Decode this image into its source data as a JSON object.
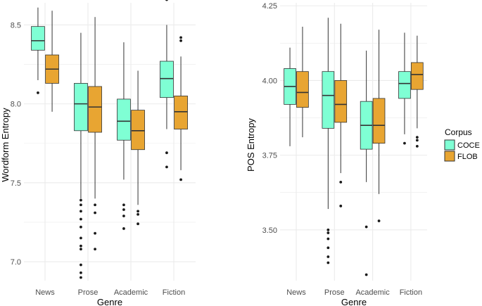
{
  "chart_data": [
    {
      "type": "boxplot",
      "xlabel": "Genre",
      "ylabel": "Wordform Entropy",
      "ylim": [
        6.88,
        8.64
      ],
      "yticks": [
        7.0,
        7.5,
        8.0,
        8.5
      ],
      "ytick_labels": [
        "7.0",
        "7.5",
        "8.0",
        "8.5"
      ],
      "grid": true,
      "categories": [
        "News",
        "Prose",
        "Academic",
        "Fiction"
      ],
      "series": [
        {
          "name": "COCE",
          "boxes": [
            {
              "whisker_low": 8.15,
              "q1": 8.34,
              "median": 8.4,
              "q3": 8.49,
              "whisker_high": 8.61,
              "outliers": [
                8.07
              ]
            },
            {
              "whisker_low": 7.4,
              "q1": 7.83,
              "median": 8.0,
              "q3": 8.13,
              "whisker_high": 8.45,
              "outliers": [
                7.39,
                7.36,
                7.32,
                7.27,
                7.22,
                7.15,
                7.1,
                7.08,
                6.98,
                6.93,
                6.9
              ]
            },
            {
              "whisker_low": 7.52,
              "q1": 7.77,
              "median": 7.89,
              "q3": 8.03,
              "whisker_high": 8.39,
              "outliers": [
                7.36,
                7.33,
                7.29,
                7.21
              ]
            },
            {
              "whisker_low": 7.84,
              "q1": 8.04,
              "median": 8.16,
              "q3": 8.27,
              "whisker_high": 8.5,
              "outliers": [
                8.66,
                7.69,
                7.6
              ]
            }
          ]
        },
        {
          "name": "FLOB",
          "boxes": [
            {
              "whisker_low": 7.95,
              "q1": 8.13,
              "median": 8.22,
              "q3": 8.31,
              "whisker_high": 8.59,
              "outliers": []
            },
            {
              "whisker_low": 7.4,
              "q1": 7.82,
              "median": 7.98,
              "q3": 8.11,
              "whisker_high": 8.55,
              "outliers": [
                7.36,
                7.31,
                7.18,
                7.08
              ]
            },
            {
              "whisker_low": 7.36,
              "q1": 7.71,
              "median": 7.83,
              "q3": 7.96,
              "whisker_high": 8.21,
              "outliers": [
                7.32,
                7.3,
                7.24
              ]
            },
            {
              "whisker_low": 7.58,
              "q1": 7.84,
              "median": 7.95,
              "q3": 8.05,
              "whisker_high": 8.3,
              "outliers": [
                8.42,
                8.4,
                7.52
              ]
            }
          ]
        }
      ]
    },
    {
      "type": "boxplot",
      "xlabel": "Genre",
      "ylabel": "POS Entropy",
      "ylim": [
        3.33,
        4.26
      ],
      "yticks": [
        3.5,
        3.75,
        4.0,
        4.25
      ],
      "ytick_labels": [
        "3.50",
        "3.75",
        "4.00",
        "4.25"
      ],
      "grid": true,
      "categories": [
        "News",
        "Prose",
        "Academic",
        "Fiction"
      ],
      "series": [
        {
          "name": "COCE",
          "boxes": [
            {
              "whisker_low": 3.78,
              "q1": 3.92,
              "median": 3.98,
              "q3": 4.04,
              "whisker_high": 4.11,
              "outliers": []
            },
            {
              "whisker_low": 3.57,
              "q1": 3.84,
              "median": 3.95,
              "q3": 4.03,
              "whisker_high": 4.21,
              "outliers": [
                3.5,
                3.49,
                3.47,
                3.44,
                3.41,
                3.39
              ]
            },
            {
              "whisker_low": 3.66,
              "q1": 3.77,
              "median": 3.85,
              "q3": 3.93,
              "whisker_high": 4.1,
              "outliers": [
                3.51,
                3.35
              ]
            },
            {
              "whisker_low": 3.82,
              "q1": 3.94,
              "median": 3.99,
              "q3": 4.03,
              "whisker_high": 4.16,
              "outliers": [
                3.79
              ]
            }
          ]
        },
        {
          "name": "FLOB",
          "boxes": [
            {
              "whisker_low": 3.81,
              "q1": 3.91,
              "median": 3.96,
              "q3": 4.03,
              "whisker_high": 4.18,
              "outliers": []
            },
            {
              "whisker_low": 3.69,
              "q1": 3.86,
              "median": 3.92,
              "q3": 4.0,
              "whisker_high": 4.19,
              "outliers": [
                3.66,
                3.58
              ]
            },
            {
              "whisker_low": 3.62,
              "q1": 3.79,
              "median": 3.85,
              "q3": 3.94,
              "whisker_high": 4.17,
              "outliers": [
                3.53
              ]
            },
            {
              "whisker_low": 3.84,
              "q1": 3.97,
              "median": 4.02,
              "q3": 4.06,
              "whisker_high": 4.15,
              "outliers": [
                3.81,
                3.8,
                3.78
              ]
            }
          ]
        }
      ]
    }
  ],
  "legend": {
    "title": "Corpus",
    "items": [
      {
        "label": "COCE",
        "color": "#7fffd4"
      },
      {
        "label": "FLOB",
        "color": "#e8a532"
      }
    ]
  },
  "colors": {
    "COCE": "#7fffd4",
    "FLOB": "#e8a532",
    "grid": "#ebebeb",
    "line": "#333333",
    "outlier": "#1a1a1a"
  }
}
